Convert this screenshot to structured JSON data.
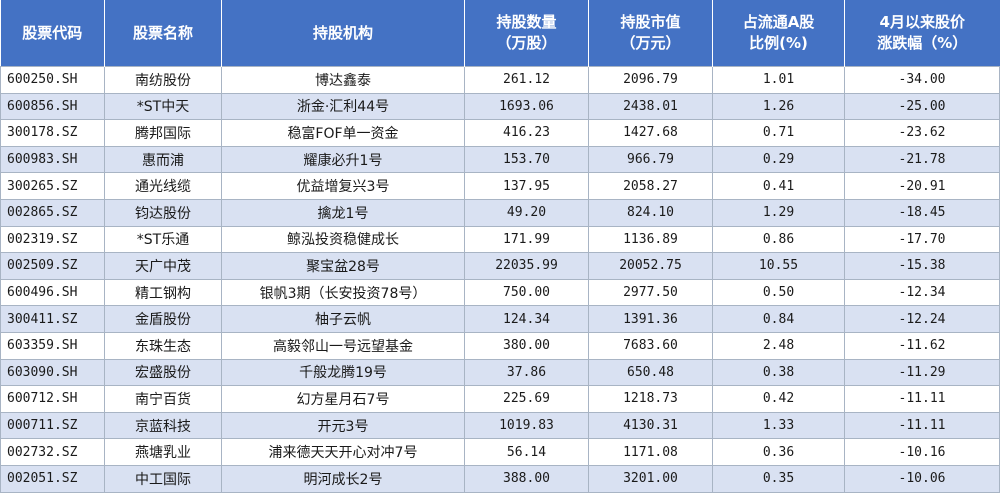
{
  "headers": {
    "code": "股票代码",
    "name": "股票名称",
    "institution": "持股机构",
    "shares_line1": "持股数量",
    "shares_line2": "（万股）",
    "value_line1": "持股市值",
    "value_line2": "（万元）",
    "ratio_line1": "占流通A股",
    "ratio_line2": "比例(%)",
    "change_line1": "4月以来股价",
    "change_line2": "涨跌幅（%）"
  },
  "rows": [
    {
      "code": "600250.SH",
      "name": "南纺股份",
      "institution": "博达鑫泰",
      "shares": "261.12",
      "value": "2096.79",
      "ratio": "1.01",
      "change": "-34.00"
    },
    {
      "code": "600856.SH",
      "name": "*ST中天",
      "institution": "浙金·汇利44号",
      "shares": "1693.06",
      "value": "2438.01",
      "ratio": "1.26",
      "change": "-25.00"
    },
    {
      "code": "300178.SZ",
      "name": "腾邦国际",
      "institution": "稳富FOF单一资金",
      "shares": "416.23",
      "value": "1427.68",
      "ratio": "0.71",
      "change": "-23.62"
    },
    {
      "code": "600983.SH",
      "name": "惠而浦",
      "institution": "耀康必升1号",
      "shares": "153.70",
      "value": "966.79",
      "ratio": "0.29",
      "change": "-21.78"
    },
    {
      "code": "300265.SZ",
      "name": "通光线缆",
      "institution": "优益增复兴3号",
      "shares": "137.95",
      "value": "2058.27",
      "ratio": "0.41",
      "change": "-20.91"
    },
    {
      "code": "002865.SZ",
      "name": "钧达股份",
      "institution": "擒龙1号",
      "shares": "49.20",
      "value": "824.10",
      "ratio": "1.29",
      "change": "-18.45"
    },
    {
      "code": "002319.SZ",
      "name": "*ST乐通",
      "institution": "鲸泓投资稳健成长",
      "shares": "171.99",
      "value": "1136.89",
      "ratio": "0.86",
      "change": "-17.70"
    },
    {
      "code": "002509.SZ",
      "name": "天广中茂",
      "institution": "聚宝盆28号",
      "shares": "22035.99",
      "value": "20052.75",
      "ratio": "10.55",
      "change": "-15.38"
    },
    {
      "code": "600496.SH",
      "name": "精工钢构",
      "institution": "银帆3期（长安投资78号）",
      "shares": "750.00",
      "value": "2977.50",
      "ratio": "0.50",
      "change": "-12.34"
    },
    {
      "code": "300411.SZ",
      "name": "金盾股份",
      "institution": "柚子云帆",
      "shares": "124.34",
      "value": "1391.36",
      "ratio": "0.84",
      "change": "-12.24"
    },
    {
      "code": "603359.SH",
      "name": "东珠生态",
      "institution": "高毅邻山一号远望基金",
      "shares": "380.00",
      "value": "7683.60",
      "ratio": "2.48",
      "change": "-11.62"
    },
    {
      "code": "603090.SH",
      "name": "宏盛股份",
      "institution": "千般龙腾19号",
      "shares": "37.86",
      "value": "650.48",
      "ratio": "0.38",
      "change": "-11.29"
    },
    {
      "code": "600712.SH",
      "name": "南宁百货",
      "institution": "幻方星月石7号",
      "shares": "225.69",
      "value": "1218.73",
      "ratio": "0.42",
      "change": "-11.11"
    },
    {
      "code": "000711.SZ",
      "name": "京蓝科技",
      "institution": "开元3号",
      "shares": "1019.83",
      "value": "4130.31",
      "ratio": "1.33",
      "change": "-11.11"
    },
    {
      "code": "002732.SZ",
      "name": "燕塘乳业",
      "institution": "浦来德天天开心对冲7号",
      "shares": "56.14",
      "value": "1171.08",
      "ratio": "0.36",
      "change": "-10.16"
    },
    {
      "code": "002051.SZ",
      "name": "中工国际",
      "institution": "明河成长2号",
      "shares": "388.00",
      "value": "3201.00",
      "ratio": "0.35",
      "change": "-10.06"
    }
  ],
  "colors": {
    "header_bg": "#4472c4",
    "header_text": "#ffffff",
    "row_alt_bg": "#d9e1f2",
    "row_bg": "#ffffff",
    "border": "#a8b4c4"
  }
}
